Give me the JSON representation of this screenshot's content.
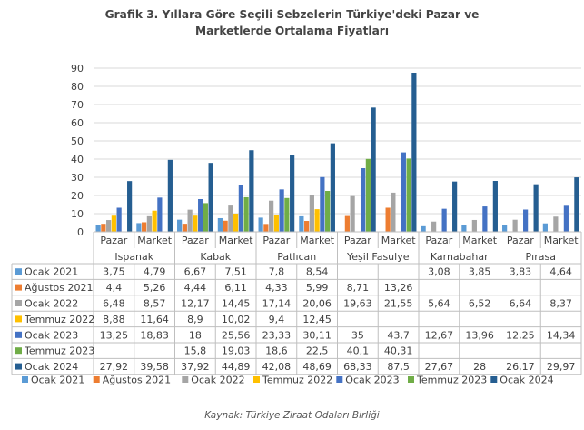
{
  "title_line1": "Grafik 3. Yıllara Göre Seçili Sebzelerin Türkiye'deki Pazar ve",
  "title_line2": "Marketlerde Ortalama Fiyatları",
  "source": "Kaynak: Türkiye Ziraat Odaları Birliği",
  "chart_data": {
    "type": "bar",
    "title": "Grafik 3. Yıllara Göre Seçili Sebzelerin Türkiye'deki Pazar ve Marketlerde Ortalama Fiyatları",
    "xlabel": "",
    "ylabel": "",
    "ylim": [
      0,
      90
    ],
    "yticks": [
      0,
      10,
      20,
      30,
      40,
      50,
      60,
      70,
      80,
      90
    ],
    "grid": true,
    "legend_position": "bottom",
    "groups": [
      "Ispanak",
      "Kabak",
      "Patlıcan",
      "Yeşil Fasulye",
      "Karnabahar",
      "Pırasa"
    ],
    "categories": [
      "Pazar",
      "Market",
      "Pazar",
      "Market",
      "Pazar",
      "Market",
      "Pazar",
      "Market",
      "Pazar",
      "Market",
      "Pazar",
      "Market"
    ],
    "series": [
      {
        "name": "Ocak 2021",
        "color": "#5B9BD5",
        "values": [
          3.75,
          4.79,
          6.67,
          7.51,
          7.8,
          8.54,
          null,
          null,
          3.08,
          3.85,
          3.83,
          4.64
        ]
      },
      {
        "name": "Ağustos 2021",
        "color": "#ED7D31",
        "values": [
          4.4,
          5.26,
          4.44,
          6.11,
          4.33,
          5.99,
          8.71,
          13.26,
          null,
          null,
          null,
          null
        ]
      },
      {
        "name": "Ocak 2022",
        "color": "#A5A5A5",
        "values": [
          6.48,
          8.57,
          12.17,
          14.45,
          17.14,
          20.06,
          19.63,
          21.55,
          5.64,
          6.52,
          6.64,
          8.37
        ]
      },
      {
        "name": "Temmuz 2022",
        "color": "#FFC000",
        "values": [
          8.88,
          11.64,
          8.9,
          10.02,
          9.4,
          12.45,
          null,
          null,
          null,
          null,
          null,
          null
        ]
      },
      {
        "name": "Ocak 2023",
        "color": "#4472C4",
        "values": [
          13.25,
          18.83,
          18,
          25.56,
          23.33,
          30.11,
          35,
          43.7,
          12.67,
          13.96,
          12.25,
          14.34
        ]
      },
      {
        "name": "Temmuz 2023",
        "color": "#70AD47",
        "values": [
          null,
          null,
          15.8,
          19.03,
          18.6,
          22.5,
          40.1,
          40.31,
          null,
          null,
          null,
          null
        ]
      },
      {
        "name": "Ocak 2024",
        "color": "#255E91",
        "values": [
          27.92,
          39.58,
          37.92,
          44.89,
          42.08,
          48.69,
          68.33,
          87.5,
          27.67,
          28,
          26.17,
          29.97
        ]
      }
    ],
    "table_values": [
      [
        "3,75",
        "4,79",
        "6,67",
        "7,51",
        "7,8",
        "8,54",
        "",
        "",
        "3,08",
        "3,85",
        "3,83",
        "4,64"
      ],
      [
        "4,4",
        "5,26",
        "4,44",
        "6,11",
        "4,33",
        "5,99",
        "8,71",
        "13,26",
        "",
        "",
        "",
        ""
      ],
      [
        "6,48",
        "8,57",
        "12,17",
        "14,45",
        "17,14",
        "20,06",
        "19,63",
        "21,55",
        "5,64",
        "6,52",
        "6,64",
        "8,37"
      ],
      [
        "8,88",
        "11,64",
        "8,9",
        "10,02",
        "9,4",
        "12,45",
        "",
        "",
        "",
        "",
        "",
        ""
      ],
      [
        "13,25",
        "18,83",
        "18",
        "25,56",
        "23,33",
        "30,11",
        "35",
        "43,7",
        "12,67",
        "13,96",
        "12,25",
        "14,34"
      ],
      [
        "",
        "",
        "15,8",
        "19,03",
        "18,6",
        "22,5",
        "40,1",
        "40,31",
        "",
        "",
        "",
        ""
      ],
      [
        "27,92",
        "39,58",
        "37,92",
        "44,89",
        "42,08",
        "48,69",
        "68,33",
        "87,5",
        "27,67",
        "28",
        "26,17",
        "29,97"
      ]
    ]
  }
}
